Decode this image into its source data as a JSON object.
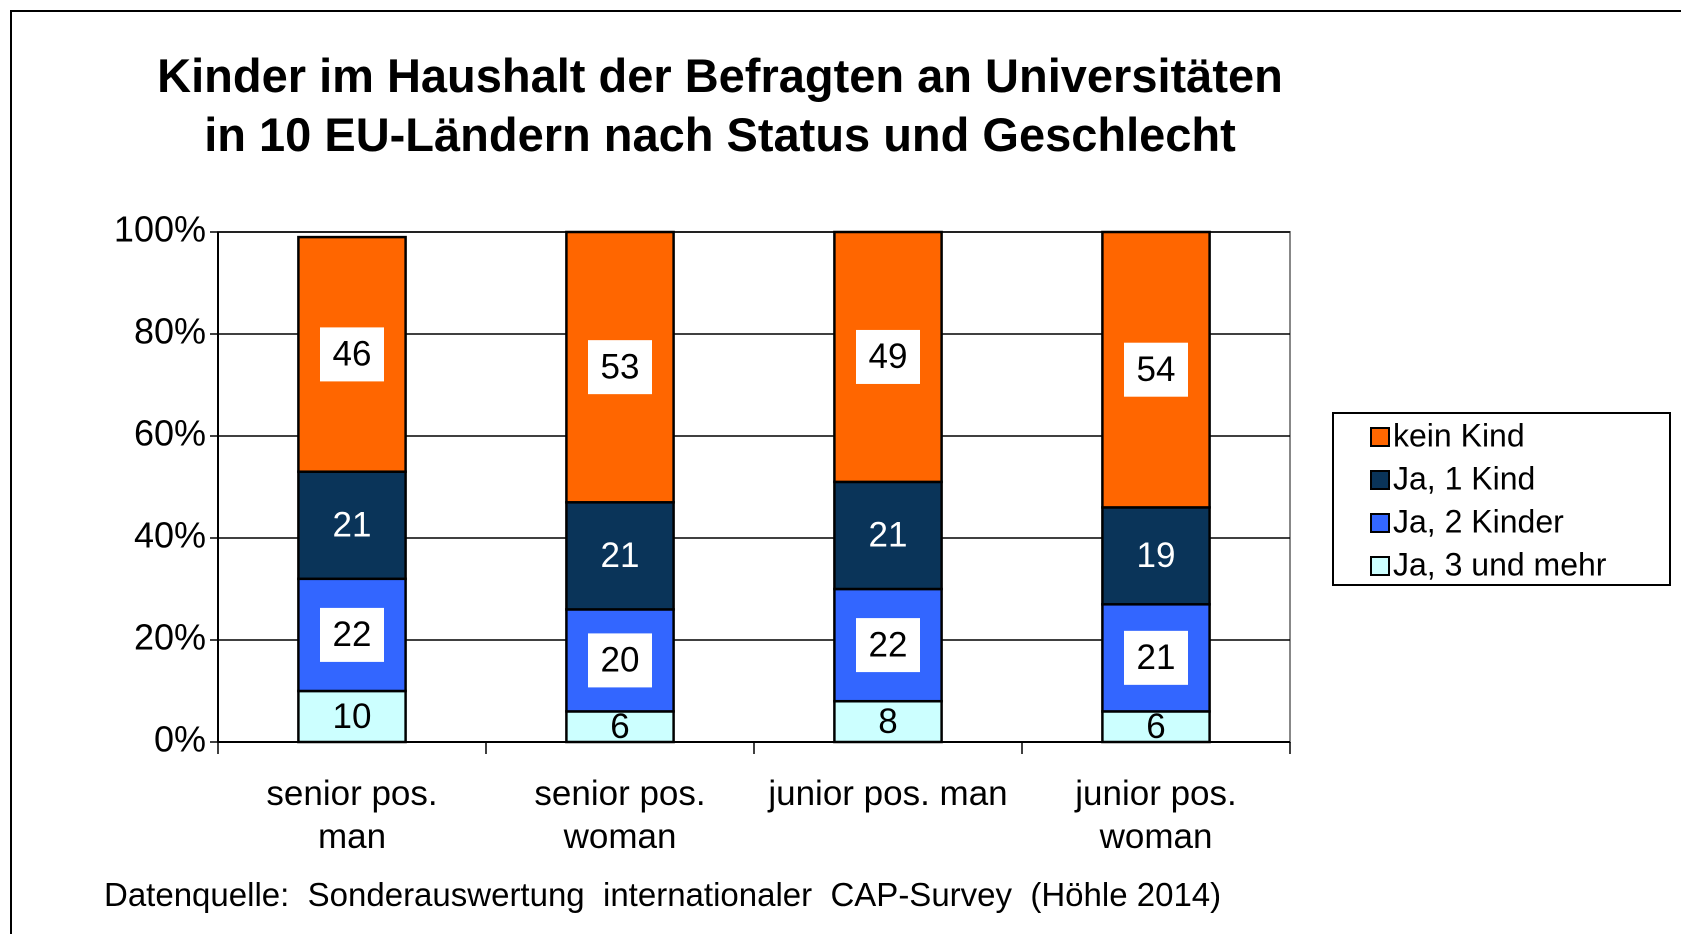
{
  "chart_data": {
    "type": "stacked_bar",
    "title": "Kinder im Haushalt der Befragten an  Universitäten in 10 EU-Ländern nach Status und Geschlecht",
    "source": "Datenquelle:  Sonderauswertung  internationaler  CAP-Survey  (Höhle 2014)",
    "categories": [
      "senior pos. man",
      "senior pos. woman",
      "junior pos. man",
      "junior pos. woman"
    ],
    "series": [
      {
        "name": "Ja, 3 und mehr",
        "color": "#ccffff",
        "values": [
          10,
          6,
          8,
          6
        ]
      },
      {
        "name": "Ja, 2 Kinder",
        "color": "#3366ff",
        "values": [
          22,
          20,
          22,
          21
        ]
      },
      {
        "name": "Ja, 1 Kind",
        "color": "#0a3459",
        "values": [
          21,
          21,
          21,
          19
        ]
      },
      {
        "name": "kein Kind",
        "color": "#ff6600",
        "values": [
          46,
          53,
          49,
          54
        ]
      }
    ],
    "ylim": [
      0,
      100
    ],
    "yticks": [
      {
        "value": 0,
        "label": "0%"
      },
      {
        "value": 20,
        "label": "20%"
      },
      {
        "value": 40,
        "label": "40%"
      },
      {
        "value": 60,
        "label": "60%"
      },
      {
        "value": 80,
        "label": "80%"
      },
      {
        "value": 100,
        "label": "100%"
      }
    ],
    "grid": true,
    "legend": "right"
  }
}
